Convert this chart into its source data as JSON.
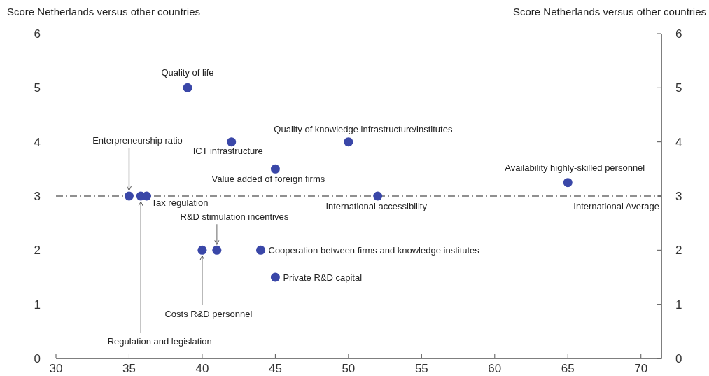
{
  "chart_data": {
    "type": "scatter",
    "annotations": [
      "Score Netherlands versus other countries",
      "Score Netherlands versus other countries"
    ],
    "x": [
      39,
      42,
      50,
      45,
      65,
      52,
      35,
      35.8,
      36.2,
      40,
      41,
      44,
      45
    ],
    "values": [
      5,
      4,
      4,
      3.5,
      3.25,
      3,
      3,
      3,
      3,
      2,
      2,
      2,
      1.5
    ],
    "value_labels": [
      "Quality of life",
      "ICT infrastructure",
      "Quality of knowledge infrastructure/institutes",
      "Value added of foreign firms",
      "Availability highly-skilled personnel",
      "International accessibility",
      "Enterpreneurship ratio",
      "Regulation and legislation",
      "Tax regulation",
      "Costs R&D personnel",
      "R&D stimulation incentives",
      "Cooperation between firms and knowledge institutes",
      "Private R&D capital"
    ],
    "color": "#3a47a8",
    "marker": "circle",
    "xlim": [
      30,
      71.4
    ],
    "xticks": [
      30,
      35,
      40,
      45,
      50,
      55,
      60,
      65,
      70
    ],
    "ylim": [
      0,
      6
    ],
    "yticks": [
      0,
      1,
      2,
      3,
      4,
      5,
      6
    ],
    "y2lim": [
      0,
      6
    ],
    "y2ticks": [
      0,
      1,
      2,
      3,
      4,
      5,
      6
    ],
    "ref_lines": [
      {
        "axis": "y",
        "value": 3,
        "label": "International Average",
        "color": "#222222",
        "line_style": "dashdot"
      }
    ],
    "grid": false
  }
}
